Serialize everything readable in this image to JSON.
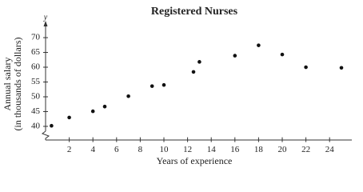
{
  "chart_data": {
    "type": "scatter",
    "title": "Registered Nurses",
    "y_axis_letter": "y",
    "y_label": [
      "Annual salary",
      "(in thousands of dollars)"
    ],
    "x_label": "Years of experience",
    "x": [
      0.5,
      2,
      4,
      5,
      7,
      9,
      10,
      12.5,
      13,
      16,
      18,
      20,
      22,
      25
    ],
    "values": [
      40.2,
      43,
      45.1,
      46.7,
      50.2,
      53.6,
      54,
      58.4,
      61.8,
      63.9,
      67.4,
      64.3,
      60,
      59.8
    ],
    "color": "#111111",
    "xlim": [
      0,
      25.5
    ],
    "ylim": [
      35.5,
      74.5
    ],
    "xticks": [
      2,
      4,
      6,
      8,
      10,
      12,
      14,
      16,
      18,
      20,
      22,
      24
    ],
    "yticks": [
      40,
      45,
      50,
      55,
      60,
      65,
      70
    ],
    "grid": false
  }
}
